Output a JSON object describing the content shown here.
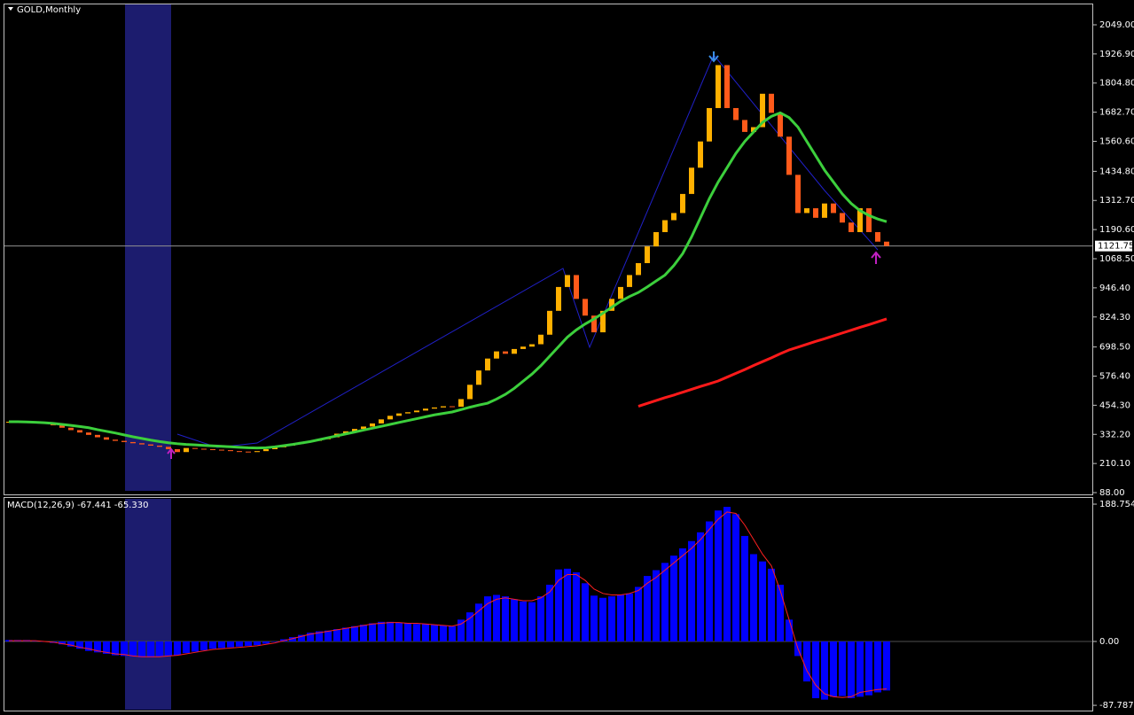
{
  "chart_data": [
    {
      "type": "candlestick",
      "title": "GOLD,Monthly",
      "up_color": "#ffb000",
      "down_color": "#ff5a1a",
      "values": [
        385,
        388,
        384,
        380,
        376,
        370,
        360,
        350,
        340,
        330,
        320,
        310,
        305,
        300,
        295,
        290,
        285,
        280,
        270,
        258,
        275,
        272,
        270,
        268,
        266,
        262,
        260,
        258,
        262,
        270,
        278,
        285,
        292,
        300,
        305,
        312,
        320,
        335,
        345,
        355,
        365,
        378,
        395,
        410,
        420,
        425,
        432,
        440,
        445,
        450,
        448,
        480,
        540,
        600,
        650,
        680,
        670,
        690,
        700,
        710,
        750,
        850,
        950,
        1000,
        900,
        830,
        760,
        850,
        900,
        950,
        1000,
        1050,
        1120,
        1180,
        1230,
        1260,
        1340,
        1450,
        1560,
        1700,
        1880,
        1700,
        1650,
        1600,
        1620,
        1760,
        1680,
        1580,
        1420,
        1260,
        1280,
        1240,
        1300,
        1260,
        1220,
        1180,
        1280,
        1180,
        1140,
        1121.75
      ],
      "lines": [
        {
          "color": "#3ccf3c",
          "values": [
            385,
            385,
            384,
            383,
            381,
            378,
            374,
            370,
            365,
            360,
            352,
            345,
            338,
            330,
            322,
            315,
            308,
            302,
            297,
            293,
            290,
            288,
            286,
            284,
            282,
            280,
            278,
            276,
            275,
            276,
            280,
            285,
            290,
            296,
            302,
            310,
            318,
            326,
            334,
            342,
            350,
            358,
            366,
            374,
            382,
            390,
            398,
            406,
            414,
            420,
            426,
            436,
            446,
            455,
            463,
            480,
            500,
            525,
            555,
            585,
            620,
            660,
            700,
            740,
            770,
            795,
            816,
            840,
            865,
            890,
            910,
            927,
            950,
            975,
            1000,
            1040,
            1090,
            1160,
            1240,
            1320,
            1390,
            1450,
            1510,
            1560,
            1600,
            1640,
            1665,
            1680,
            1660,
            1620,
            1560,
            1500,
            1440,
            1390,
            1340,
            1300,
            1270,
            1250,
            1235,
            1224
          ]
        },
        {
          "color": "#ff1a1a",
          "values": [
            null,
            null,
            null,
            null,
            null,
            null,
            null,
            null,
            null,
            null,
            null,
            null,
            null,
            null,
            null,
            null,
            null,
            null,
            null,
            null,
            null,
            null,
            null,
            null,
            null,
            null,
            null,
            null,
            null,
            null,
            null,
            null,
            null,
            null,
            null,
            null,
            null,
            null,
            null,
            null,
            null,
            null,
            null,
            null,
            null,
            null,
            null,
            null,
            null,
            null,
            null,
            null,
            null,
            null,
            null,
            null,
            null,
            null,
            null,
            null,
            null,
            null,
            null,
            null,
            null,
            null,
            null,
            null,
            null,
            null,
            null,
            450,
            462,
            474,
            486,
            497,
            509,
            521,
            533,
            544,
            556,
            572,
            588,
            604,
            621,
            637,
            653,
            670,
            686,
            698,
            710,
            722,
            733,
            745,
            757,
            769,
            781,
            792,
            804,
            816
          ]
        }
      ],
      "current_price": 1121.75,
      "ylim": [
        80.6,
        2134.4
      ],
      "yticks": [
        {
          "value": 2049,
          "label": "2049.00"
        },
        {
          "value": 1926.9,
          "label": "1926.90"
        },
        {
          "value": 1804.8,
          "label": "1804.80"
        },
        {
          "value": 1682.7,
          "label": "1682.70"
        },
        {
          "value": 1560.6,
          "label": "1560.60"
        },
        {
          "value": 1434.8,
          "label": "1434.80"
        },
        {
          "value": 1312.7,
          "label": "1312.70"
        },
        {
          "value": 1190.6,
          "label": "1190.60"
        },
        {
          "value": 1068.5,
          "label": "1068.50"
        },
        {
          "value": 946.4,
          "label": "946.40"
        },
        {
          "value": 824.3,
          "label": "824.30"
        },
        {
          "value": 698.5,
          "label": "698.50"
        },
        {
          "value": 576.4,
          "label": "576.40"
        },
        {
          "value": 454.3,
          "label": "454.30"
        },
        {
          "value": 332.2,
          "label": "332.20"
        },
        {
          "value": 210.1,
          "label": "210.10"
        },
        {
          "value": 88,
          "label": "88.00"
        }
      ]
    },
    {
      "type": "histogram",
      "title": "MACD(12,26,9) -67.441 -65.330",
      "color": "#0000ff",
      "values": [
        2,
        2,
        2,
        1,
        0,
        -2,
        -4,
        -7,
        -10,
        -13,
        -15,
        -17,
        -19,
        -20,
        -21,
        -22,
        -22,
        -21,
        -20,
        -19,
        -16,
        -14,
        -12,
        -10,
        -9,
        -8,
        -7,
        -6,
        -5,
        -3,
        0,
        3,
        6,
        9,
        12,
        14,
        15,
        17,
        19,
        21,
        23,
        25,
        27,
        27,
        26,
        25,
        24,
        24,
        23,
        22,
        21,
        30,
        40,
        52,
        62,
        64,
        62,
        58,
        55,
        54,
        62,
        78,
        99,
        100,
        95,
        80,
        63,
        60,
        62,
        64,
        66,
        75,
        90,
        98,
        108,
        118,
        128,
        138,
        150,
        165,
        180,
        185,
        175,
        145,
        120,
        110,
        100,
        78,
        30,
        -20,
        -55,
        -78,
        -80,
        -76,
        -75,
        -78,
        -76,
        -74,
        -70,
        -67.441
      ],
      "signal": {
        "color": "#ff2020",
        "values": [
          1,
          1,
          1,
          1,
          0,
          -1,
          -3,
          -5,
          -8,
          -10,
          -13,
          -15,
          -17,
          -18,
          -20,
          -21,
          -21,
          -21,
          -20,
          -19,
          -17,
          -15,
          -13,
          -11,
          -10,
          -9,
          -8,
          -7,
          -6,
          -4,
          -2,
          1,
          4,
          7,
          10,
          12,
          14,
          16,
          18,
          20,
          22,
          24,
          25,
          26,
          26,
          25,
          25,
          24,
          23,
          22,
          21,
          24,
          32,
          42,
          52,
          58,
          60,
          58,
          56,
          56,
          60,
          68,
          84,
          92,
          92,
          84,
          72,
          66,
          64,
          64,
          66,
          70,
          80,
          88,
          98,
          108,
          118,
          128,
          140,
          154,
          168,
          178,
          176,
          160,
          140,
          120,
          104,
          70,
          30,
          -10,
          -40,
          -60,
          -72,
          -76,
          -77,
          -76,
          -70,
          -68,
          -66,
          -65.33
        ]
      },
      "ylim": [
        -95,
        197.3
      ],
      "yticks": [
        188.754,
        {
          "value": 0,
          "label": "0.00"
        },
        -87.787
      ]
    }
  ]
}
